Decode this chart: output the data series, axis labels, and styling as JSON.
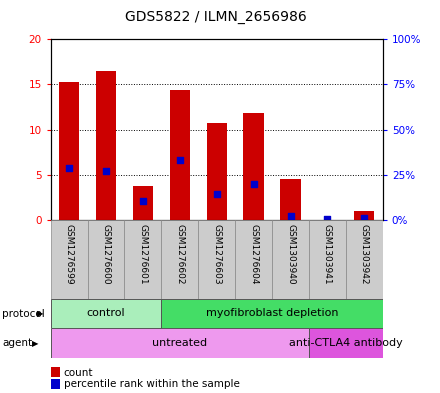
{
  "title": "GDS5822 / ILMN_2656986",
  "samples": [
    "GSM1276599",
    "GSM1276600",
    "GSM1276601",
    "GSM1276602",
    "GSM1276603",
    "GSM1276604",
    "GSM1303940",
    "GSM1303941",
    "GSM1303942"
  ],
  "counts": [
    15.3,
    16.5,
    3.8,
    14.4,
    10.7,
    11.9,
    4.6,
    0.05,
    1.0
  ],
  "percentile_ranks": [
    29.0,
    27.0,
    10.5,
    33.0,
    14.5,
    20.0,
    2.5,
    0.5,
    1.0
  ],
  "ylim_left": [
    0,
    20
  ],
  "ylim_right": [
    0,
    100
  ],
  "yticks_left": [
    0,
    5,
    10,
    15,
    20
  ],
  "yticks_right": [
    0,
    25,
    50,
    75,
    100
  ],
  "ytick_labels_left": [
    "0",
    "5",
    "10",
    "15",
    "20"
  ],
  "ytick_labels_right": [
    "0%",
    "25%",
    "50%",
    "75%",
    "100%"
  ],
  "bar_color": "#cc0000",
  "percentile_color": "#0000cc",
  "bar_width": 0.55,
  "protocol_groups": [
    {
      "label": "control",
      "start": 0,
      "end": 3,
      "color": "#aaeebb"
    },
    {
      "label": "myofibroblast depletion",
      "start": 3,
      "end": 9,
      "color": "#44dd66"
    }
  ],
  "agent_groups": [
    {
      "label": "untreated",
      "start": 0,
      "end": 7,
      "color": "#ee99ee"
    },
    {
      "label": "anti-CTLA4 antibody",
      "start": 7,
      "end": 9,
      "color": "#dd55dd"
    }
  ],
  "protocol_label": "protocol",
  "agent_label": "agent",
  "legend_count_label": "count",
  "legend_percentile_label": "percentile rank within the sample",
  "background_color": "#ffffff"
}
